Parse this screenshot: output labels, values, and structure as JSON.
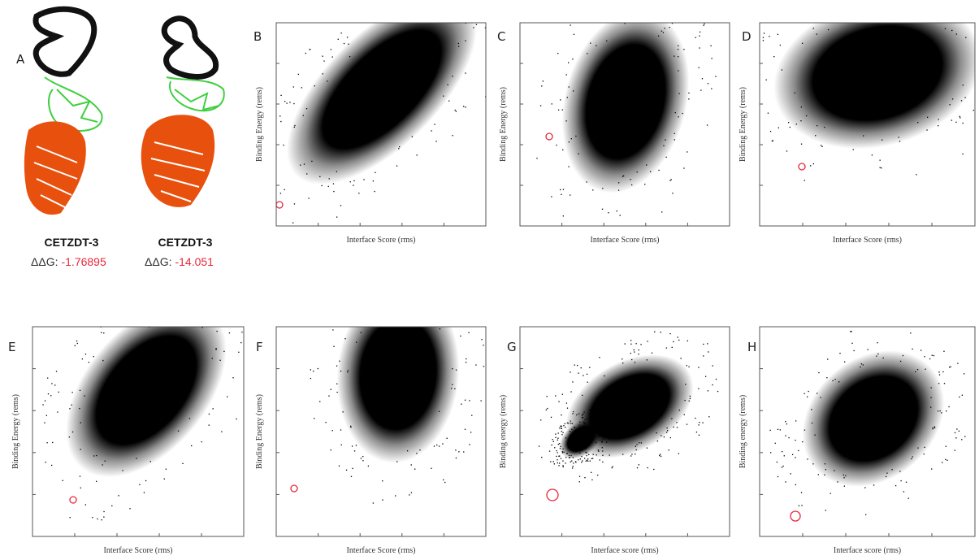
{
  "structures": [
    {
      "label": "A",
      "name": "CETZDT-3",
      "ddg_label": "ΔΔG:",
      "ddg": "-1.76895"
    },
    {
      "name": "CETZDT-3",
      "ddg_label": "ΔΔG:",
      "ddg": "-14.051"
    }
  ],
  "plots": [
    {
      "label": "B",
      "x_label": "Interface Score (rms)",
      "y_label": "Binding Energy (rems)"
    },
    {
      "label": "C",
      "x_label": "Interface Score (rms)",
      "y_label": "Binding Energy (rems)"
    },
    {
      "label": "D",
      "x_label": "Interface Score (rms)",
      "y_label": "Binding Energy (rems)"
    },
    {
      "label": "E",
      "x_label": "Interface Score (rms)",
      "y_label": "Binding Energy (rems)"
    },
    {
      "label": "F",
      "x_label": "Interface Score (rms)",
      "y_label": "Binding Energy (rems)"
    },
    {
      "label": "G",
      "x_label": "Interface score (rms)",
      "y_label": "Binding energy (rems)"
    },
    {
      "label": "H",
      "x_label": "Interface score (rms)",
      "y_label": "Binding energy (rems)"
    }
  ]
}
